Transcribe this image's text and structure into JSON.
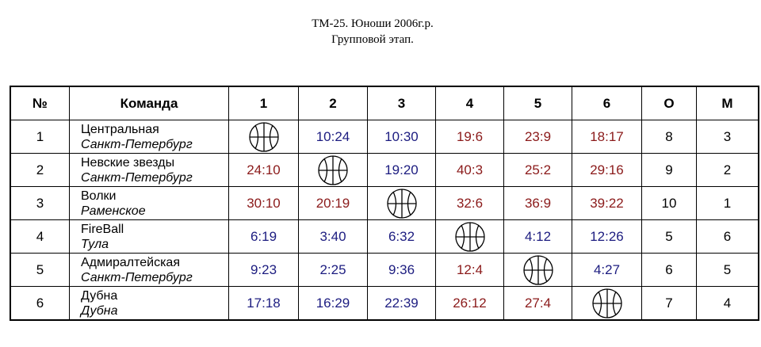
{
  "header": {
    "title": "ТМ-25. Юноши 2006г.р.",
    "subtitle": "Групповой этап."
  },
  "colors": {
    "win": "#8b1a1a",
    "loss": "#1c1c80"
  },
  "table": {
    "columns": [
      "№",
      "Команда",
      "1",
      "2",
      "3",
      "4",
      "5",
      "6",
      "О",
      "М"
    ],
    "rows": [
      {
        "number": 1,
        "team": "Центральная",
        "city": "Санкт-Петербург",
        "scores": [
          null,
          "10:24",
          "10:30",
          "19:6",
          "23:9",
          "18:17"
        ],
        "points": 8,
        "place": 3
      },
      {
        "number": 2,
        "team": "Невские звезды",
        "city": "Санкт-Петербург",
        "scores": [
          "24:10",
          null,
          "19:20",
          "40:3",
          "25:2",
          "29:16"
        ],
        "points": 9,
        "place": 2
      },
      {
        "number": 3,
        "team": "Волки",
        "city": "Раменское",
        "scores": [
          "30:10",
          "20:19",
          null,
          "32:6",
          "36:9",
          "39:22"
        ],
        "points": 10,
        "place": 1
      },
      {
        "number": 4,
        "team": "FireBall",
        "city": "Тула",
        "scores": [
          "6:19",
          "3:40",
          "6:32",
          null,
          "4:12",
          "12:26"
        ],
        "points": 5,
        "place": 6
      },
      {
        "number": 5,
        "team": "Адмиралтейская",
        "city": "Санкт-Петербург",
        "scores": [
          "9:23",
          "2:25",
          "9:36",
          "12:4",
          null,
          "4:27"
        ],
        "points": 6,
        "place": 5
      },
      {
        "number": 6,
        "team": "Дубна",
        "city": "Дубна",
        "scores": [
          "17:18",
          "16:29",
          "22:39",
          "26:12",
          "27:4",
          null
        ],
        "points": 7,
        "place": 4
      }
    ]
  }
}
